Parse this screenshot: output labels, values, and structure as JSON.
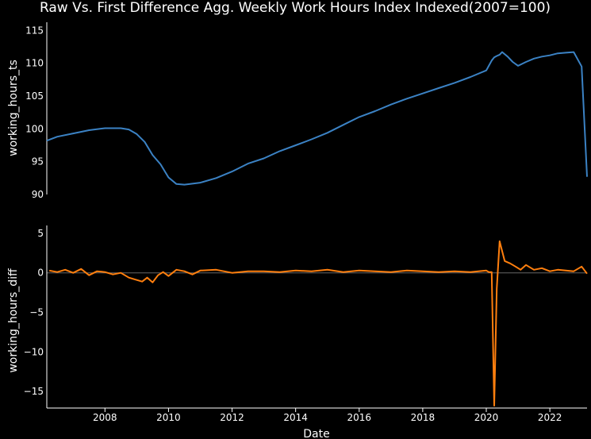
{
  "chart_data": {
    "type": "line",
    "title": "Raw Vs. First Difference Agg. Weekly Work Hours Index Indexed(2007=100)",
    "xlabel": "Date",
    "background": "#000000",
    "text_color": "#ffffff",
    "grid": false,
    "legend": "none",
    "xlim": [
      2006.17,
      2023.17
    ],
    "x_ticks": [
      2008,
      2010,
      2012,
      2014,
      2016,
      2018,
      2020,
      2022
    ],
    "x_tick_labels": [
      "2008",
      "2010",
      "2012",
      "2014",
      "2016",
      "2018",
      "2020",
      "2022"
    ],
    "subplots": [
      {
        "ylabel": "working_hours_ts",
        "ylim": [
          90,
          116
        ],
        "y_ticks": [
          90,
          95,
          100,
          105,
          110,
          115
        ],
        "y_tick_labels": [
          "90",
          "95",
          "100",
          "105",
          "110",
          "115"
        ],
        "zero_line": false,
        "series": {
          "color": "#3b82c4",
          "x": [
            2006.17,
            2006.5,
            2007.0,
            2007.5,
            2008.0,
            2008.5,
            2008.75,
            2009.0,
            2009.25,
            2009.5,
            2009.75,
            2010.0,
            2010.25,
            2010.5,
            2011.0,
            2011.5,
            2012.0,
            2012.5,
            2013.0,
            2013.5,
            2014.0,
            2014.5,
            2015.0,
            2015.5,
            2016.0,
            2016.5,
            2017.0,
            2017.5,
            2018.0,
            2018.5,
            2019.0,
            2019.5,
            2020.0,
            2020.08,
            2020.17,
            2020.25,
            2020.33,
            2020.42,
            2020.5,
            2020.67,
            2020.83,
            2021.0,
            2021.25,
            2021.5,
            2021.75,
            2022.0,
            2022.25,
            2022.5,
            2022.75,
            2023.0,
            2023.17
          ],
          "y": [
            98.2,
            98.8,
            99.3,
            99.8,
            100.1,
            100.1,
            99.9,
            99.2,
            98.0,
            96.0,
            94.6,
            92.6,
            91.6,
            91.5,
            91.8,
            92.5,
            93.5,
            94.7,
            95.5,
            96.6,
            97.5,
            98.4,
            99.4,
            100.6,
            101.8,
            102.7,
            103.7,
            104.6,
            105.4,
            106.2,
            107.0,
            107.9,
            108.9,
            109.6,
            110.4,
            110.9,
            111.1,
            111.3,
            111.7,
            111.0,
            110.2,
            109.6,
            110.2,
            110.7,
            111.0,
            111.2,
            111.5,
            111.6,
            111.7,
            109.5,
            92.7
          ]
        }
      },
      {
        "ylabel": "working_hours_diff",
        "ylim": [
          -17,
          6
        ],
        "y_ticks": [
          -15,
          -10,
          -5,
          0,
          5
        ],
        "y_tick_labels": [
          "−15",
          "−10",
          "−5",
          "0",
          "5"
        ],
        "zero_line": true,
        "series": {
          "color": "#ff7f0e",
          "x": [
            2006.25,
            2006.5,
            2006.75,
            2007.0,
            2007.25,
            2007.5,
            2007.75,
            2008.0,
            2008.25,
            2008.5,
            2008.75,
            2009.0,
            2009.17,
            2009.33,
            2009.5,
            2009.67,
            2009.83,
            2010.0,
            2010.25,
            2010.5,
            2010.75,
            2011.0,
            2011.5,
            2012.0,
            2012.5,
            2013.0,
            2013.5,
            2014.0,
            2014.5,
            2015.0,
            2015.5,
            2016.0,
            2016.5,
            2017.0,
            2017.5,
            2018.0,
            2018.5,
            2019.0,
            2019.5,
            2020.0,
            2020.08,
            2020.17,
            2020.25,
            2020.33,
            2020.42,
            2020.58,
            2020.75,
            2020.92,
            2021.08,
            2021.25,
            2021.5,
            2021.75,
            2022.0,
            2022.25,
            2022.5,
            2022.75,
            2023.0,
            2023.17
          ],
          "y": [
            0.3,
            0.1,
            0.4,
            0.0,
            0.5,
            -0.3,
            0.2,
            0.1,
            -0.2,
            0.0,
            -0.6,
            -0.9,
            -1.1,
            -0.6,
            -1.2,
            -0.3,
            0.1,
            -0.4,
            0.4,
            0.2,
            -0.2,
            0.3,
            0.4,
            0.0,
            0.2,
            0.2,
            0.1,
            0.3,
            0.2,
            0.4,
            0.1,
            0.3,
            0.2,
            0.1,
            0.3,
            0.2,
            0.1,
            0.2,
            0.1,
            0.3,
            0.1,
            0.1,
            -16.8,
            -2.0,
            4.0,
            1.5,
            1.2,
            0.8,
            0.4,
            1.0,
            0.4,
            0.6,
            0.2,
            0.4,
            0.3,
            0.2,
            0.8,
            -0.1
          ]
        }
      }
    ]
  }
}
